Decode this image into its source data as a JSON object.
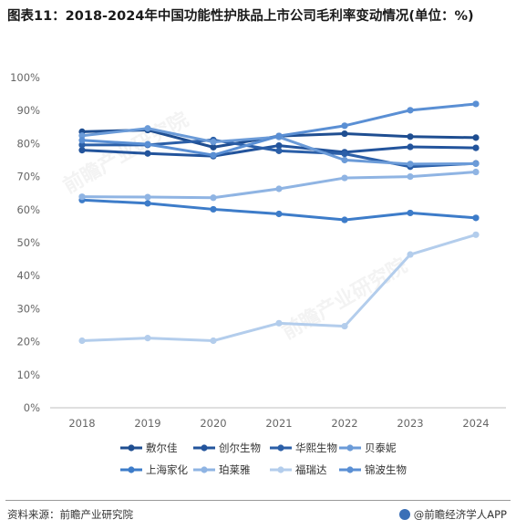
{
  "title": "图表11：2018-2024年中国功能性护肤品上市公司毛利率变动情况(单位：%)",
  "source": "资料来源：前瞻产业研究院",
  "brand": "@前瞻经济学人APP",
  "watermark": "前瞻产业研究院",
  "chart_data": {
    "type": "line",
    "categories": [
      "2018",
      "2019",
      "2020",
      "2021",
      "2022",
      "2023",
      "2024"
    ],
    "ylim": [
      0,
      100
    ],
    "yticks": [
      "0%",
      "10%",
      "20%",
      "30%",
      "40%",
      "50%",
      "60%",
      "70%",
      "80%",
      "90%",
      "100%"
    ],
    "legend_position": "bottom",
    "grid": false,
    "series": [
      {
        "name": "敷尔佳",
        "color": "#1f4e91",
        "values": [
          83.6,
          84.1,
          78.9,
          82.3,
          83.0,
          82.1,
          81.8
        ]
      },
      {
        "name": "创尔生物",
        "color": "#23549c",
        "values": [
          78.0,
          77.0,
          76.2,
          79.4,
          77.4,
          79.0,
          78.7
        ]
      },
      {
        "name": "华熙生物",
        "color": "#2b5fa8",
        "values": [
          79.6,
          79.6,
          81.1,
          77.8,
          76.9,
          73.0,
          74.0
        ]
      },
      {
        "name": "贝泰妮",
        "color": "#6b9bd8",
        "values": [
          82.4,
          84.6,
          80.5,
          82.0,
          75.0,
          73.8,
          73.9
        ]
      },
      {
        "name": "上海家化",
        "color": "#3d7cc9",
        "values": [
          62.9,
          61.9,
          60.1,
          58.7,
          56.9,
          59.0,
          57.5
        ]
      },
      {
        "name": "珀莱雅",
        "color": "#8fb4e3",
        "values": [
          63.9,
          63.8,
          63.6,
          66.3,
          69.6,
          70.0,
          71.4
        ]
      },
      {
        "name": "福瑞达",
        "color": "#b3cdec",
        "values": [
          20.3,
          21.1,
          20.3,
          25.6,
          24.7,
          46.4,
          52.4
        ]
      },
      {
        "name": "锦波生物",
        "color": "#5a8fd4",
        "values": [
          81.0,
          79.8,
          76.5,
          82.3,
          85.4,
          90.1,
          92.0
        ]
      }
    ]
  }
}
